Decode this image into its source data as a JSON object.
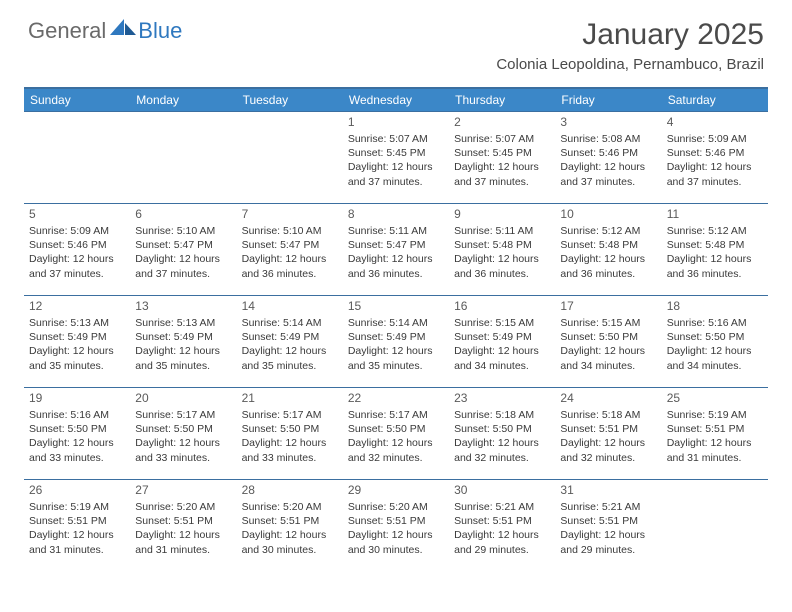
{
  "brand": {
    "part1": "General",
    "part2": "Blue"
  },
  "title": "January 2025",
  "location": "Colonia Leopoldina, Pernambuco, Brazil",
  "colors": {
    "header_bg": "#3b87c8",
    "header_border": "#3b6fa0",
    "brand_gray": "#6a6a6a",
    "brand_blue": "#2f78bf",
    "text": "#333333"
  },
  "day_headers": [
    "Sunday",
    "Monday",
    "Tuesday",
    "Wednesday",
    "Thursday",
    "Friday",
    "Saturday"
  ],
  "weeks": [
    [
      null,
      null,
      null,
      {
        "n": "1",
        "sr": "5:07 AM",
        "ss": "5:45 PM",
        "dl": "12 hours and 37 minutes."
      },
      {
        "n": "2",
        "sr": "5:07 AM",
        "ss": "5:45 PM",
        "dl": "12 hours and 37 minutes."
      },
      {
        "n": "3",
        "sr": "5:08 AM",
        "ss": "5:46 PM",
        "dl": "12 hours and 37 minutes."
      },
      {
        "n": "4",
        "sr": "5:09 AM",
        "ss": "5:46 PM",
        "dl": "12 hours and 37 minutes."
      }
    ],
    [
      {
        "n": "5",
        "sr": "5:09 AM",
        "ss": "5:46 PM",
        "dl": "12 hours and 37 minutes."
      },
      {
        "n": "6",
        "sr": "5:10 AM",
        "ss": "5:47 PM",
        "dl": "12 hours and 37 minutes."
      },
      {
        "n": "7",
        "sr": "5:10 AM",
        "ss": "5:47 PM",
        "dl": "12 hours and 36 minutes."
      },
      {
        "n": "8",
        "sr": "5:11 AM",
        "ss": "5:47 PM",
        "dl": "12 hours and 36 minutes."
      },
      {
        "n": "9",
        "sr": "5:11 AM",
        "ss": "5:48 PM",
        "dl": "12 hours and 36 minutes."
      },
      {
        "n": "10",
        "sr": "5:12 AM",
        "ss": "5:48 PM",
        "dl": "12 hours and 36 minutes."
      },
      {
        "n": "11",
        "sr": "5:12 AM",
        "ss": "5:48 PM",
        "dl": "12 hours and 36 minutes."
      }
    ],
    [
      {
        "n": "12",
        "sr": "5:13 AM",
        "ss": "5:49 PM",
        "dl": "12 hours and 35 minutes."
      },
      {
        "n": "13",
        "sr": "5:13 AM",
        "ss": "5:49 PM",
        "dl": "12 hours and 35 minutes."
      },
      {
        "n": "14",
        "sr": "5:14 AM",
        "ss": "5:49 PM",
        "dl": "12 hours and 35 minutes."
      },
      {
        "n": "15",
        "sr": "5:14 AM",
        "ss": "5:49 PM",
        "dl": "12 hours and 35 minutes."
      },
      {
        "n": "16",
        "sr": "5:15 AM",
        "ss": "5:49 PM",
        "dl": "12 hours and 34 minutes."
      },
      {
        "n": "17",
        "sr": "5:15 AM",
        "ss": "5:50 PM",
        "dl": "12 hours and 34 minutes."
      },
      {
        "n": "18",
        "sr": "5:16 AM",
        "ss": "5:50 PM",
        "dl": "12 hours and 34 minutes."
      }
    ],
    [
      {
        "n": "19",
        "sr": "5:16 AM",
        "ss": "5:50 PM",
        "dl": "12 hours and 33 minutes."
      },
      {
        "n": "20",
        "sr": "5:17 AM",
        "ss": "5:50 PM",
        "dl": "12 hours and 33 minutes."
      },
      {
        "n": "21",
        "sr": "5:17 AM",
        "ss": "5:50 PM",
        "dl": "12 hours and 33 minutes."
      },
      {
        "n": "22",
        "sr": "5:17 AM",
        "ss": "5:50 PM",
        "dl": "12 hours and 32 minutes."
      },
      {
        "n": "23",
        "sr": "5:18 AM",
        "ss": "5:50 PM",
        "dl": "12 hours and 32 minutes."
      },
      {
        "n": "24",
        "sr": "5:18 AM",
        "ss": "5:51 PM",
        "dl": "12 hours and 32 minutes."
      },
      {
        "n": "25",
        "sr": "5:19 AM",
        "ss": "5:51 PM",
        "dl": "12 hours and 31 minutes."
      }
    ],
    [
      {
        "n": "26",
        "sr": "5:19 AM",
        "ss": "5:51 PM",
        "dl": "12 hours and 31 minutes."
      },
      {
        "n": "27",
        "sr": "5:20 AM",
        "ss": "5:51 PM",
        "dl": "12 hours and 31 minutes."
      },
      {
        "n": "28",
        "sr": "5:20 AM",
        "ss": "5:51 PM",
        "dl": "12 hours and 30 minutes."
      },
      {
        "n": "29",
        "sr": "5:20 AM",
        "ss": "5:51 PM",
        "dl": "12 hours and 30 minutes."
      },
      {
        "n": "30",
        "sr": "5:21 AM",
        "ss": "5:51 PM",
        "dl": "12 hours and 29 minutes."
      },
      {
        "n": "31",
        "sr": "5:21 AM",
        "ss": "5:51 PM",
        "dl": "12 hours and 29 minutes."
      },
      null
    ]
  ],
  "labels": {
    "sunrise": "Sunrise:",
    "sunset": "Sunset:",
    "daylight": "Daylight:"
  }
}
